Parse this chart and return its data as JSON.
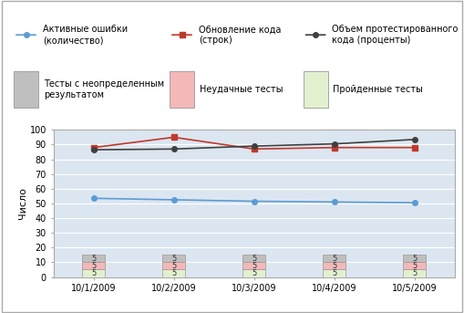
{
  "x_labels": [
    "10/1/2009",
    "10/2/2009",
    "10/3/2009",
    "10/4/2009",
    "10/5/2009"
  ],
  "x_positions": [
    0,
    1,
    2,
    3,
    4
  ],
  "active_errors": [
    53.5,
    52.5,
    51.5,
    51.0,
    50.5
  ],
  "code_updates": [
    88,
    95,
    87,
    88,
    88
  ],
  "tested_volume": [
    86.5,
    87,
    89,
    90.5,
    93.5
  ],
  "stacked_gray": [
    5,
    5,
    5,
    5,
    5
  ],
  "stacked_pink": [
    5,
    5,
    5,
    5,
    5
  ],
  "stacked_green": [
    5,
    5,
    5,
    5,
    5
  ],
  "color_active": "#5b9bd5",
  "color_updates": "#c0392b",
  "color_tested": "#404040",
  "color_gray_bar": "#bfbfbf",
  "color_pink_bar": "#f4b8b8",
  "color_green_bar": "#e2f0d0",
  "bg_plot": "#dce6f1",
  "bg_outer": "#ffffff",
  "grid_color": "#ffffff",
  "ylim": [
    0,
    100
  ],
  "ylabel": "Число",
  "legend_line1_label1": "Активные ошибки\n(количество)",
  "legend_line1_label2": "Обновление кода\n(строк)",
  "legend_line1_label3": "Объем протестированного\nкода (проценты)",
  "legend_bar_label1": "Тесты с неопределенным\nрезультатом",
  "legend_bar_label2": "Неудачные тесты",
  "legend_bar_label3": "Пройденные тесты",
  "border_color": "#aaaaaa",
  "tick_fontsize": 7,
  "label_fontsize": 8,
  "legend_fontsize": 7
}
